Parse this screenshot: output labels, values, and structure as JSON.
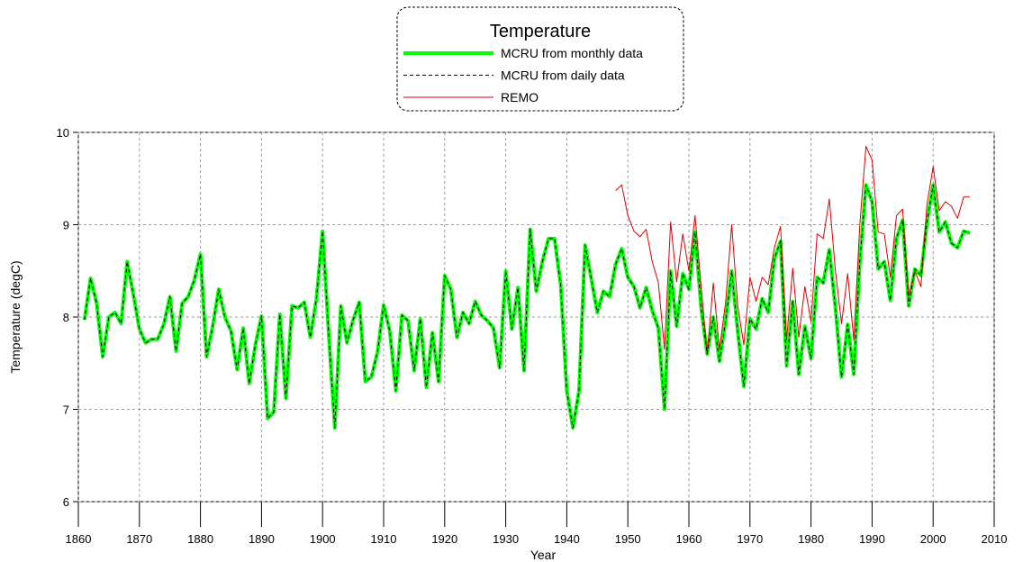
{
  "chart_data": {
    "type": "line",
    "title": "Temperature",
    "xlabel": "Year",
    "ylabel": "Temperature (degC)",
    "xlim": [
      1860,
      2010
    ],
    "xticks": [
      1860,
      1870,
      1880,
      1890,
      1900,
      1910,
      1920,
      1930,
      1940,
      1950,
      1960,
      1970,
      1980,
      1990,
      2000,
      2010
    ],
    "ylim": [
      6,
      10
    ],
    "yticks": [
      6,
      7,
      8,
      9,
      10
    ],
    "grid": true,
    "series": [
      {
        "name": "MCRU from monthly data",
        "color": "#00ff00",
        "style": "solid",
        "x": [
          1861,
          1862,
          1863,
          1864,
          1865,
          1866,
          1867,
          1868,
          1869,
          1870,
          1871,
          1872,
          1873,
          1874,
          1875,
          1876,
          1877,
          1878,
          1879,
          1880,
          1881,
          1882,
          1883,
          1884,
          1885,
          1886,
          1887,
          1888,
          1889,
          1890,
          1891,
          1892,
          1893,
          1894,
          1895,
          1896,
          1897,
          1898,
          1899,
          1900,
          1901,
          1902,
          1903,
          1904,
          1905,
          1906,
          1907,
          1908,
          1909,
          1910,
          1911,
          1912,
          1913,
          1914,
          1915,
          1916,
          1917,
          1918,
          1919,
          1920,
          1921,
          1922,
          1923,
          1924,
          1925,
          1926,
          1927,
          1928,
          1929,
          1930,
          1931,
          1932,
          1933,
          1934,
          1935,
          1936,
          1937,
          1938,
          1939,
          1940,
          1941,
          1942,
          1943,
          1944,
          1945,
          1946,
          1947,
          1948,
          1949,
          1950,
          1951,
          1952,
          1953,
          1954,
          1955,
          1956,
          1957,
          1958,
          1959,
          1960,
          1961,
          1962,
          1963,
          1964,
          1965,
          1966,
          1967,
          1968,
          1969,
          1970,
          1971,
          1972,
          1973,
          1974,
          1975,
          1976,
          1977,
          1978,
          1979,
          1980,
          1981,
          1982,
          1983,
          1984,
          1985,
          1986,
          1987,
          1988,
          1989,
          1990,
          1991,
          1992,
          1993,
          1994,
          1995,
          1996,
          1997,
          1998,
          1999,
          2000,
          2001,
          2002,
          2003,
          2004,
          2005,
          2006
        ],
        "values": [
          7.97,
          8.42,
          8.15,
          7.57,
          8.0,
          8.05,
          7.93,
          8.6,
          8.25,
          7.87,
          7.72,
          7.76,
          7.76,
          7.92,
          8.22,
          7.63,
          8.15,
          8.22,
          8.4,
          8.68,
          7.57,
          7.9,
          8.3,
          8.0,
          7.85,
          7.43,
          7.88,
          7.28,
          7.7,
          8.01,
          6.9,
          6.97,
          8.03,
          7.12,
          8.12,
          8.1,
          8.16,
          7.78,
          8.2,
          8.93,
          7.82,
          6.8,
          8.12,
          7.72,
          7.97,
          8.16,
          7.3,
          7.35,
          7.62,
          8.13,
          7.85,
          7.2,
          8.02,
          7.96,
          7.42,
          7.98,
          7.24,
          7.83,
          7.3,
          8.45,
          8.3,
          7.78,
          8.05,
          7.93,
          8.17,
          8.02,
          7.96,
          7.88,
          7.45,
          8.5,
          7.87,
          8.32,
          7.42,
          8.95,
          8.28,
          8.6,
          8.85,
          8.85,
          8.35,
          7.2,
          6.8,
          7.2,
          8.78,
          8.42,
          8.05,
          8.28,
          8.22,
          8.57,
          8.74,
          8.43,
          8.33,
          8.1,
          8.32,
          8.07,
          7.88,
          7.0,
          8.5,
          7.9,
          8.47,
          8.3,
          8.92,
          8.1,
          7.6,
          8.0,
          7.52,
          7.95,
          8.5,
          7.85,
          7.25,
          7.98,
          7.87,
          8.2,
          8.05,
          8.63,
          8.82,
          7.47,
          8.17,
          7.38,
          7.9,
          7.55,
          8.43,
          8.37,
          8.73,
          8.1,
          7.35,
          7.92,
          7.38,
          8.6,
          9.43,
          9.25,
          8.52,
          8.6,
          8.18,
          8.85,
          9.05,
          8.12,
          8.52,
          8.45,
          9.03,
          9.43,
          8.92,
          9.03,
          8.8,
          8.75,
          8.93,
          8.91
        ]
      },
      {
        "name": "MCRU from daily data",
        "color": "#000000",
        "style": "dashed",
        "x": [
          1861,
          1862,
          1863,
          1864,
          1865,
          1866,
          1867,
          1868,
          1869,
          1870,
          1871,
          1872,
          1873,
          1874,
          1875,
          1876,
          1877,
          1878,
          1879,
          1880,
          1881,
          1882,
          1883,
          1884,
          1885,
          1886,
          1887,
          1888,
          1889,
          1890,
          1891,
          1892,
          1893,
          1894,
          1895,
          1896,
          1897,
          1898,
          1899,
          1900,
          1901,
          1902,
          1903,
          1904,
          1905,
          1906,
          1907,
          1908,
          1909,
          1910,
          1911,
          1912,
          1913,
          1914,
          1915,
          1916,
          1917,
          1918,
          1919,
          1920,
          1921,
          1922,
          1923,
          1924,
          1925,
          1926,
          1927,
          1928,
          1929,
          1930,
          1931,
          1932,
          1933,
          1934,
          1935,
          1936,
          1937,
          1938,
          1939,
          1940,
          1941,
          1942,
          1943,
          1944,
          1945,
          1946,
          1947,
          1948,
          1949,
          1950,
          1951,
          1952,
          1953,
          1954,
          1955,
          1956,
          1957,
          1958,
          1959,
          1960,
          1961,
          1962,
          1963,
          1964,
          1965,
          1966,
          1967,
          1968,
          1969,
          1970,
          1971,
          1972,
          1973,
          1974,
          1975,
          1976,
          1977,
          1978,
          1979,
          1980,
          1981,
          1982,
          1983,
          1984,
          1985,
          1986,
          1987,
          1988,
          1989,
          1990,
          1991,
          1992,
          1993,
          1994,
          1995,
          1996,
          1997,
          1998,
          1999,
          2000,
          2001,
          2002,
          2003,
          2004,
          2005,
          2006
        ],
        "values": [
          7.97,
          8.42,
          8.15,
          7.57,
          8.0,
          8.05,
          7.93,
          8.6,
          8.25,
          7.87,
          7.72,
          7.76,
          7.76,
          7.92,
          8.22,
          7.63,
          8.15,
          8.22,
          8.4,
          8.68,
          7.57,
          7.9,
          8.3,
          8.0,
          7.85,
          7.43,
          7.88,
          7.28,
          7.7,
          8.01,
          6.9,
          6.97,
          8.03,
          7.12,
          8.12,
          8.1,
          8.16,
          7.78,
          8.2,
          8.93,
          7.82,
          6.8,
          8.12,
          7.72,
          7.97,
          8.16,
          7.3,
          7.35,
          7.62,
          8.13,
          7.85,
          7.2,
          8.02,
          7.96,
          7.42,
          7.98,
          7.24,
          7.83,
          7.3,
          8.45,
          8.3,
          7.78,
          8.05,
          7.93,
          8.17,
          8.02,
          7.96,
          7.88,
          7.45,
          8.5,
          7.87,
          8.32,
          7.42,
          8.95,
          8.28,
          8.6,
          8.85,
          8.85,
          8.35,
          7.2,
          6.8,
          7.2,
          8.78,
          8.42,
          8.05,
          8.28,
          8.22,
          8.57,
          8.74,
          8.43,
          8.33,
          8.1,
          8.32,
          8.07,
          7.88,
          7.0,
          8.5,
          7.9,
          8.47,
          8.3,
          8.92,
          8.1,
          7.6,
          8.0,
          7.52,
          7.95,
          8.5,
          7.85,
          7.25,
          7.98,
          7.87,
          8.2,
          8.05,
          8.63,
          8.82,
          7.47,
          8.17,
          7.38,
          7.9,
          7.55,
          8.43,
          8.37,
          8.73,
          8.1,
          7.35,
          7.92,
          7.38,
          8.6,
          9.43,
          9.25,
          8.52,
          8.6,
          8.18,
          8.85,
          9.05,
          8.12,
          8.52,
          8.45,
          9.03,
          9.43,
          8.92,
          9.03,
          8.8,
          8.75,
          8.93,
          8.91
        ]
      },
      {
        "name": "REMO",
        "color": "#e00000",
        "style": "solid",
        "x": [
          1948,
          1949,
          1950,
          1951,
          1952,
          1953,
          1954,
          1955,
          1956,
          1957,
          1958,
          1959,
          1960,
          1961,
          1962,
          1963,
          1964,
          1965,
          1966,
          1967,
          1968,
          1969,
          1970,
          1971,
          1972,
          1973,
          1974,
          1975,
          1976,
          1977,
          1978,
          1979,
          1980,
          1981,
          1982,
          1983,
          1984,
          1985,
          1986,
          1987,
          1988,
          1989,
          1990,
          1991,
          1992,
          1993,
          1994,
          1995,
          1996,
          1997,
          1998,
          1999,
          2000,
          2001,
          2002,
          2003,
          2004,
          2005,
          2006
        ],
        "values": [
          9.37,
          9.43,
          9.1,
          8.93,
          8.87,
          8.95,
          8.6,
          8.37,
          7.65,
          9.03,
          8.38,
          8.9,
          8.5,
          9.1,
          8.33,
          7.6,
          8.37,
          7.65,
          8.15,
          9.0,
          8.12,
          7.7,
          8.43,
          8.17,
          8.43,
          8.35,
          8.75,
          8.98,
          7.75,
          8.53,
          7.78,
          8.33,
          7.95,
          8.9,
          8.85,
          9.28,
          8.5,
          7.93,
          8.47,
          7.75,
          9.0,
          9.85,
          9.7,
          8.92,
          8.9,
          8.43,
          9.1,
          9.17,
          8.22,
          8.5,
          8.33,
          9.22,
          9.63,
          9.15,
          9.25,
          9.2,
          9.07,
          9.3,
          9.3
        ]
      }
    ]
  }
}
